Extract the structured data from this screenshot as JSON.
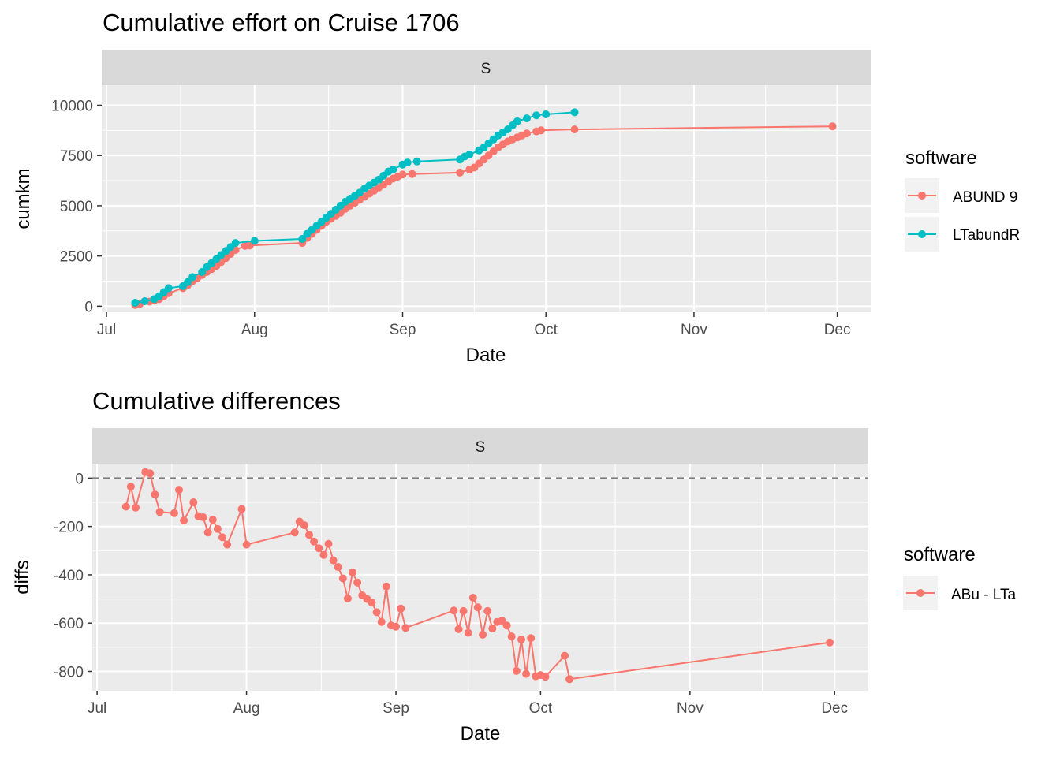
{
  "top": {
    "title": "Cumulative effort on Cruise 1706",
    "facet": "S",
    "xlabel": "Date",
    "ylabel": "cumkm",
    "legend_title": "software"
  },
  "bottom": {
    "title": "Cumulative differences",
    "facet": "S",
    "xlabel": "Date",
    "ylabel": "diffs",
    "legend_title": "software"
  },
  "colors": {
    "red": "#F8766D",
    "teal": "#00BFC4",
    "panel": "#EBEBEB",
    "strip": "#D9D9D9",
    "grid": "#FFFFFF"
  },
  "chart_data": [
    {
      "type": "line",
      "title": "Cumulative effort on Cruise 1706",
      "facet": "S",
      "xlabel": "Date",
      "ylabel": "cumkm",
      "xlim": [
        "2017-06-30",
        "2017-12-08"
      ],
      "ylim": [
        -300,
        11000
      ],
      "x_ticks": [
        {
          "date": "2017-07-01",
          "label": "Jul"
        },
        {
          "date": "2017-08-01",
          "label": "Aug"
        },
        {
          "date": "2017-09-01",
          "label": "Sep"
        },
        {
          "date": "2017-10-01",
          "label": "Oct"
        },
        {
          "date": "2017-11-01",
          "label": "Nov"
        },
        {
          "date": "2017-12-01",
          "label": "Dec"
        }
      ],
      "y_ticks": [
        0,
        2500,
        5000,
        7500,
        10000
      ],
      "y_tick_labels": [
        "0",
        "2500",
        "5000",
        "7500",
        "10000"
      ],
      "grid": true,
      "legend_position": "right",
      "series": [
        {
          "name": "ABUND 9",
          "color": "#F8766D",
          "points": [
            [
              "2017-07-07",
              60
            ],
            [
              "2017-07-08",
              120
            ],
            [
              "2017-07-10",
              230
            ],
            [
              "2017-07-11",
              280
            ],
            [
              "2017-07-12",
              350
            ],
            [
              "2017-07-13",
              500
            ],
            [
              "2017-07-14",
              650
            ],
            [
              "2017-07-17",
              900
            ],
            [
              "2017-07-18",
              1050
            ],
            [
              "2017-07-19",
              1250
            ],
            [
              "2017-07-20",
              1400
            ],
            [
              "2017-07-21",
              1550
            ],
            [
              "2017-07-22",
              1700
            ],
            [
              "2017-07-23",
              1850
            ],
            [
              "2017-07-24",
              2000
            ],
            [
              "2017-07-25",
              2200
            ],
            [
              "2017-07-26",
              2400
            ],
            [
              "2017-07-27",
              2600
            ],
            [
              "2017-07-28",
              2800
            ],
            [
              "2017-07-30",
              3000
            ],
            [
              "2017-07-31",
              3020
            ],
            [
              "2017-08-11",
              3150
            ],
            [
              "2017-08-12",
              3400
            ],
            [
              "2017-08-13",
              3600
            ],
            [
              "2017-08-14",
              3800
            ],
            [
              "2017-08-15",
              4000
            ],
            [
              "2017-08-16",
              4200
            ],
            [
              "2017-08-17",
              4350
            ],
            [
              "2017-08-18",
              4500
            ],
            [
              "2017-08-19",
              4650
            ],
            [
              "2017-08-20",
              4850
            ],
            [
              "2017-08-21",
              5000
            ],
            [
              "2017-08-22",
              5150
            ],
            [
              "2017-08-23",
              5300
            ],
            [
              "2017-08-24",
              5450
            ],
            [
              "2017-08-25",
              5600
            ],
            [
              "2017-08-26",
              5750
            ],
            [
              "2017-08-27",
              5900
            ],
            [
              "2017-08-28",
              6050
            ],
            [
              "2017-08-29",
              6200
            ],
            [
              "2017-08-30",
              6350
            ],
            [
              "2017-08-31",
              6450
            ],
            [
              "2017-09-01",
              6550
            ],
            [
              "2017-09-03",
              6580
            ],
            [
              "2017-09-13",
              6650
            ],
            [
              "2017-09-15",
              6800
            ],
            [
              "2017-09-16",
              6900
            ],
            [
              "2017-09-17",
              7100
            ],
            [
              "2017-09-18",
              7300
            ],
            [
              "2017-09-19",
              7500
            ],
            [
              "2017-09-20",
              7700
            ],
            [
              "2017-09-21",
              7900
            ],
            [
              "2017-09-22",
              8050
            ],
            [
              "2017-09-23",
              8200
            ],
            [
              "2017-09-24",
              8300
            ],
            [
              "2017-09-25",
              8400
            ],
            [
              "2017-09-26",
              8500
            ],
            [
              "2017-09-27",
              8600
            ],
            [
              "2017-09-29",
              8700
            ],
            [
              "2017-09-30",
              8750
            ],
            [
              "2017-10-07",
              8800
            ],
            [
              "2017-11-30",
              8950
            ]
          ]
        },
        {
          "name": "LTabundR",
          "color": "#00BFC4",
          "points": [
            [
              "2017-07-07",
              170
            ],
            [
              "2017-07-09",
              250
            ],
            [
              "2017-07-11",
              350
            ],
            [
              "2017-07-12",
              500
            ],
            [
              "2017-07-13",
              700
            ],
            [
              "2017-07-14",
              900
            ],
            [
              "2017-07-17",
              1000
            ],
            [
              "2017-07-18",
              1200
            ],
            [
              "2017-07-19",
              1450
            ],
            [
              "2017-07-21",
              1700
            ],
            [
              "2017-07-22",
              1950
            ],
            [
              "2017-07-23",
              2150
            ],
            [
              "2017-07-24",
              2350
            ],
            [
              "2017-07-25",
              2550
            ],
            [
              "2017-07-26",
              2750
            ],
            [
              "2017-07-27",
              2950
            ],
            [
              "2017-07-28",
              3150
            ],
            [
              "2017-08-01",
              3250
            ],
            [
              "2017-08-11",
              3350
            ],
            [
              "2017-08-12",
              3600
            ],
            [
              "2017-08-13",
              3800
            ],
            [
              "2017-08-14",
              4000
            ],
            [
              "2017-08-15",
              4200
            ],
            [
              "2017-08-16",
              4400
            ],
            [
              "2017-08-17",
              4600
            ],
            [
              "2017-08-18",
              4800
            ],
            [
              "2017-08-19",
              5000
            ],
            [
              "2017-08-20",
              5200
            ],
            [
              "2017-08-21",
              5350
            ],
            [
              "2017-08-22",
              5500
            ],
            [
              "2017-08-23",
              5650
            ],
            [
              "2017-08-24",
              5850
            ],
            [
              "2017-08-25",
              6000
            ],
            [
              "2017-08-26",
              6150
            ],
            [
              "2017-08-27",
              6300
            ],
            [
              "2017-08-28",
              6500
            ],
            [
              "2017-08-29",
              6700
            ],
            [
              "2017-08-30",
              6800
            ],
            [
              "2017-09-01",
              7050
            ],
            [
              "2017-09-02",
              7150
            ],
            [
              "2017-09-04",
              7200
            ],
            [
              "2017-09-13",
              7300
            ],
            [
              "2017-09-14",
              7450
            ],
            [
              "2017-09-15",
              7550
            ],
            [
              "2017-09-17",
              7750
            ],
            [
              "2017-09-18",
              7900
            ],
            [
              "2017-09-19",
              8100
            ],
            [
              "2017-09-20",
              8300
            ],
            [
              "2017-09-21",
              8500
            ],
            [
              "2017-09-22",
              8650
            ],
            [
              "2017-09-23",
              8800
            ],
            [
              "2017-09-24",
              9000
            ],
            [
              "2017-09-25",
              9200
            ],
            [
              "2017-09-27",
              9350
            ],
            [
              "2017-09-29",
              9500
            ],
            [
              "2017-10-01",
              9550
            ],
            [
              "2017-10-07",
              9650
            ]
          ]
        }
      ]
    },
    {
      "type": "line",
      "title": "Cumulative differences",
      "facet": "S",
      "xlabel": "Date",
      "ylabel": "diffs",
      "xlim": [
        "2017-06-30",
        "2017-12-08"
      ],
      "ylim": [
        -880,
        60
      ],
      "x_ticks": [
        {
          "date": "2017-07-01",
          "label": "Jul"
        },
        {
          "date": "2017-08-01",
          "label": "Aug"
        },
        {
          "date": "2017-09-01",
          "label": "Sep"
        },
        {
          "date": "2017-10-01",
          "label": "Oct"
        },
        {
          "date": "2017-11-01",
          "label": "Nov"
        },
        {
          "date": "2017-12-01",
          "label": "Dec"
        }
      ],
      "y_ticks": [
        -800,
        -600,
        -400,
        -200,
        0
      ],
      "y_tick_labels": [
        "-800",
        "-600",
        "-400",
        "-200",
        "0"
      ],
      "reference_line": 0,
      "grid": true,
      "legend_position": "right",
      "series": [
        {
          "name": "ABu - LTa",
          "color": "#F8766D",
          "points": [
            [
              "2017-07-07",
              -118
            ],
            [
              "2017-07-08",
              -35
            ],
            [
              "2017-07-09",
              -122
            ],
            [
              "2017-07-11",
              25
            ],
            [
              "2017-07-12",
              20
            ],
            [
              "2017-07-13",
              -68
            ],
            [
              "2017-07-14",
              -140
            ],
            [
              "2017-07-17",
              -145
            ],
            [
              "2017-07-18",
              -48
            ],
            [
              "2017-07-19",
              -175
            ],
            [
              "2017-07-21",
              -100
            ],
            [
              "2017-07-22",
              -158
            ],
            [
              "2017-07-23",
              -162
            ],
            [
              "2017-07-24",
              -225
            ],
            [
              "2017-07-25",
              -172
            ],
            [
              "2017-07-26",
              -210
            ],
            [
              "2017-07-27",
              -245
            ],
            [
              "2017-07-28",
              -275
            ],
            [
              "2017-07-31",
              -128
            ],
            [
              "2017-08-01",
              -275
            ],
            [
              "2017-08-11",
              -225
            ],
            [
              "2017-08-12",
              -180
            ],
            [
              "2017-08-13",
              -195
            ],
            [
              "2017-08-14",
              -235
            ],
            [
              "2017-08-15",
              -262
            ],
            [
              "2017-08-16",
              -290
            ],
            [
              "2017-08-17",
              -318
            ],
            [
              "2017-08-18",
              -272
            ],
            [
              "2017-08-19",
              -340
            ],
            [
              "2017-08-20",
              -368
            ],
            [
              "2017-08-21",
              -415
            ],
            [
              "2017-08-22",
              -498
            ],
            [
              "2017-08-23",
              -390
            ],
            [
              "2017-08-24",
              -432
            ],
            [
              "2017-08-25",
              -485
            ],
            [
              "2017-08-26",
              -500
            ],
            [
              "2017-08-27",
              -515
            ],
            [
              "2017-08-28",
              -555
            ],
            [
              "2017-08-29",
              -595
            ],
            [
              "2017-08-30",
              -448
            ],
            [
              "2017-08-31",
              -610
            ],
            [
              "2017-09-01",
              -615
            ],
            [
              "2017-09-02",
              -540
            ],
            [
              "2017-09-03",
              -620
            ],
            [
              "2017-09-13",
              -548
            ],
            [
              "2017-09-14",
              -625
            ],
            [
              "2017-09-15",
              -550
            ],
            [
              "2017-09-16",
              -640
            ],
            [
              "2017-09-17",
              -495
            ],
            [
              "2017-09-18",
              -535
            ],
            [
              "2017-09-19",
              -648
            ],
            [
              "2017-09-20",
              -550
            ],
            [
              "2017-09-21",
              -622
            ],
            [
              "2017-09-22",
              -595
            ],
            [
              "2017-09-23",
              -590
            ],
            [
              "2017-09-24",
              -610
            ],
            [
              "2017-09-25",
              -655
            ],
            [
              "2017-09-26",
              -798
            ],
            [
              "2017-09-27",
              -668
            ],
            [
              "2017-09-28",
              -810
            ],
            [
              "2017-09-29",
              -662
            ],
            [
              "2017-09-30",
              -820
            ],
            [
              "2017-10-01",
              -815
            ],
            [
              "2017-10-02",
              -822
            ],
            [
              "2017-10-06",
              -735
            ],
            [
              "2017-10-07",
              -832
            ],
            [
              "2017-11-30",
              -680
            ]
          ]
        }
      ]
    }
  ]
}
